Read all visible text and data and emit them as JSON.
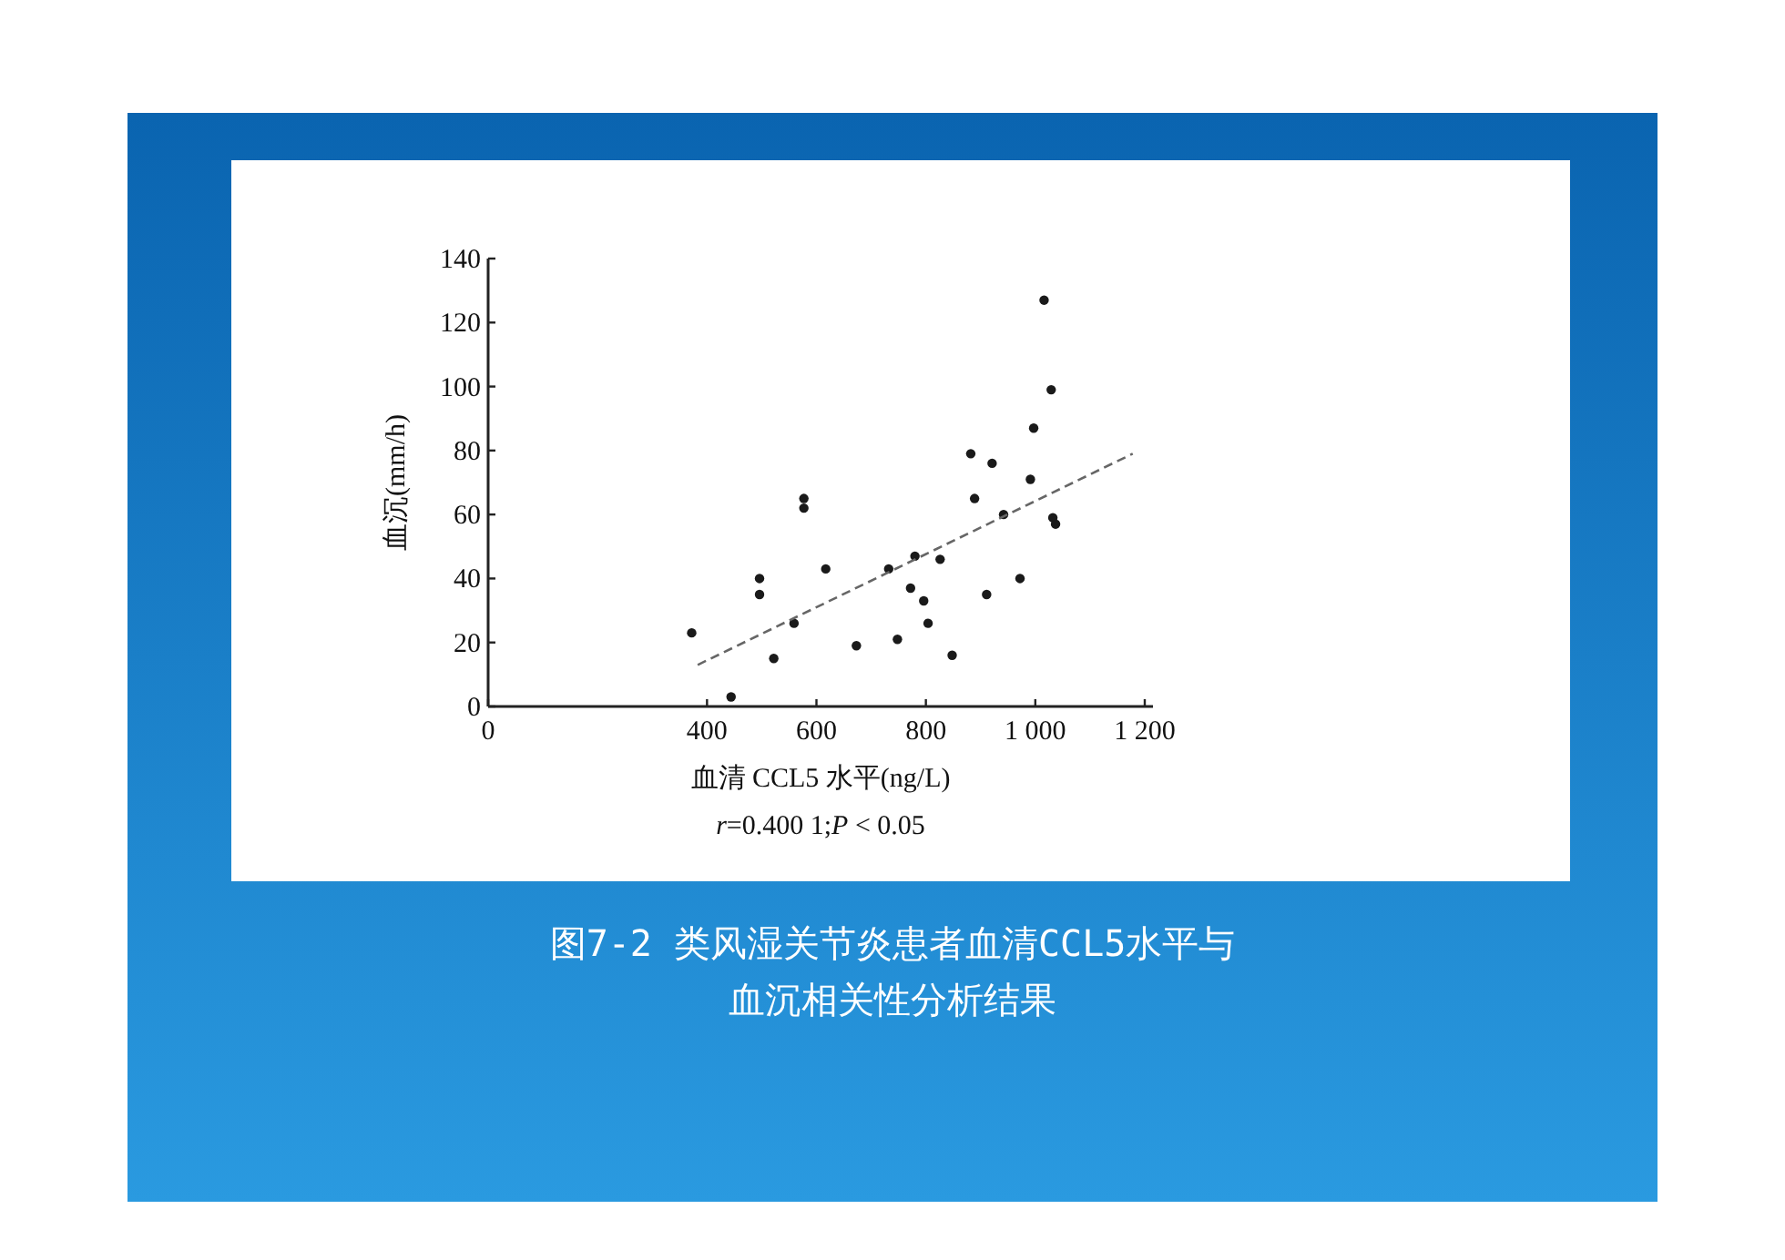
{
  "chart_data": {
    "type": "scatter",
    "title": "图7-2 类风湿关节炎患者血清CCL5水平与血沉相关性分析结果",
    "xlabel": "血清 CCL5 水平(ng/L)",
    "ylabel": "血沉(mm/h)",
    "annotations": [
      "*r*=0.400 1;*P* < 0.05"
    ],
    "xlim": [
      0,
      1215
    ],
    "ylim": [
      0,
      140
    ],
    "xticks": [
      0,
      400,
      600,
      800,
      {
        "value": 1000,
        "label": "1 000"
      },
      {
        "value": 1200,
        "label": "1 200"
      }
    ],
    "yticks": [
      0,
      20,
      40,
      60,
      80,
      100,
      120,
      140
    ],
    "series": [
      {
        "color": "#1a1a1a",
        "marker": "circle",
        "x": [
          372,
          444,
          496,
          496,
          522,
          559,
          577,
          577,
          617,
          673,
          732,
          748,
          772,
          780,
          796,
          804,
          826,
          848,
          882,
          889,
          911,
          921,
          942,
          972,
          991,
          997,
          1016,
          1029,
          1032,
          1037
        ],
        "values": [
          23,
          3,
          40,
          35,
          15,
          26,
          65,
          62,
          43,
          19,
          43,
          21,
          37,
          47,
          33,
          26,
          46,
          16,
          79,
          65,
          35,
          76,
          60,
          40,
          71,
          87,
          127,
          99,
          59,
          57
        ]
      },
      {
        "type": "line",
        "marker": "none",
        "color": "#666666",
        "line_style": "dashed",
        "x": [
          383,
          1178
        ],
        "values": [
          13,
          79
        ]
      }
    ]
  }
}
